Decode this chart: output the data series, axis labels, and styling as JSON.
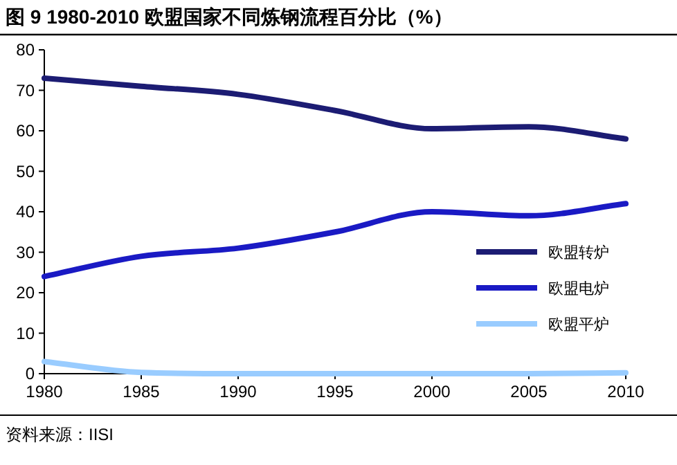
{
  "chart_data": {
    "type": "line",
    "title": "图 9 1980-2010 欧盟国家不同炼钢流程百分比（%）",
    "x": [
      1980,
      1985,
      1990,
      1995,
      2000,
      2005,
      2010
    ],
    "series": [
      {
        "name": "欧盟转炉",
        "color": "#1c1c73",
        "values": [
          73,
          71,
          69,
          65,
          60.5,
          61,
          58
        ]
      },
      {
        "name": "欧盟电炉",
        "color": "#1a1ac4",
        "values": [
          24,
          29,
          31,
          35,
          40,
          39,
          42
        ]
      },
      {
        "name": "欧盟平炉",
        "color": "#99ccff",
        "values": [
          3,
          0.3,
          0,
          0,
          0,
          0,
          0.2
        ]
      }
    ],
    "xlim": [
      1980,
      2010
    ],
    "xticks": [
      1980,
      1985,
      1990,
      1995,
      2000,
      2005,
      2010
    ],
    "ylim": [
      0,
      80
    ],
    "yticks": [
      0,
      10,
      20,
      30,
      40,
      50,
      60,
      70,
      80
    ],
    "grid": false,
    "legend": "right",
    "marker": "none",
    "line_style": "solid",
    "annotations": [
      "资料来源：IISI"
    ]
  }
}
